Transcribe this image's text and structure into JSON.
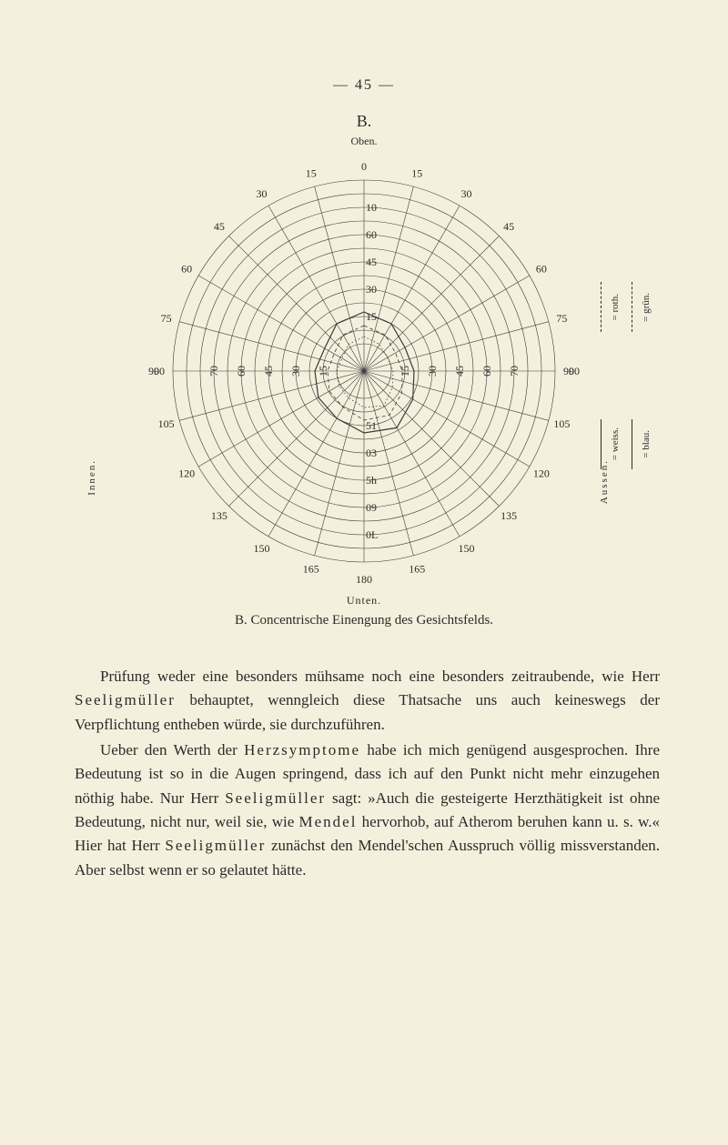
{
  "page_number": "— 45 —",
  "figure_label": "B.",
  "top_label": "Oben.",
  "bottom_label": "Unten.",
  "caption": "B. Concentrische Einengung des Gesichtsfelds.",
  "side_labels": {
    "left": "Innen.",
    "right": "Aussen."
  },
  "legend": {
    "roth": "= roth.",
    "gruen": "= grün.",
    "weiss": "= weiss.",
    "blau": "= blau."
  },
  "chart": {
    "outer_ticks_angles": [
      0,
      15,
      30,
      45,
      60,
      75,
      90,
      105,
      120,
      135,
      150,
      165,
      180,
      165,
      150,
      135,
      120,
      105,
      90,
      75,
      60,
      45,
      30,
      15
    ],
    "radial_labels_left": [
      "15",
      "30",
      "45",
      "60",
      "75",
      "90",
      "105",
      "120",
      "135",
      "150",
      "165"
    ],
    "radial_labels_right": [
      "15",
      "30",
      "45",
      "60",
      "75",
      "90",
      "105",
      "120",
      "135",
      "150",
      "165"
    ],
    "vertical_ticks": [
      "0",
      "10",
      "60",
      "45",
      "30",
      "15",
      "51",
      "03",
      "5h",
      "09",
      "0L",
      "180"
    ],
    "ring_labels_h": [
      "70",
      "60",
      "45",
      "30",
      "15",
      "15",
      "30",
      "45",
      "60",
      "70"
    ],
    "circles_r": [
      30,
      45,
      60,
      75,
      90,
      105,
      120,
      135,
      150,
      165,
      180,
      195,
      210
    ],
    "meridians": 24,
    "line_color": "#3a3a3a",
    "line_width": 0.6,
    "background": "#f5f0dd",
    "inner_curves": [
      {
        "style": "solid",
        "approx_r": [
          65,
          60,
          52,
          55,
          62,
          72,
          68,
          60,
          58,
          54,
          50,
          60
        ],
        "width": 1.2
      },
      {
        "style": "dashed",
        "approx_r": [
          50,
          46,
          40,
          42,
          48,
          56,
          54,
          46,
          44,
          40,
          38,
          46
        ],
        "width": 0.8
      },
      {
        "style": "dotted",
        "approx_r": [
          38,
          34,
          30,
          32,
          36,
          44,
          40,
          34,
          32,
          30,
          28,
          34
        ],
        "width": 0.8
      }
    ]
  },
  "body_text": {
    "p1_part1": "Prüfung weder eine besonders mühsame noch eine besonders zeitraubende, wie Herr ",
    "p1_name1": "Seeligmüller",
    "p1_part2": " behauptet, wenngleich diese Thatsache uns auch keineswegs der Verpflichtung entheben würde, sie durchzuführen.",
    "p2_part1": "Ueber den Werth der ",
    "p2_term1": "Herzsymptome",
    "p2_part2": " habe ich mich genügend ausgesprochen. Ihre Bedeutung ist so in die Augen springend, dass ich auf den Punkt nicht mehr einzugehen nöthig habe. Nur Herr ",
    "p2_name1": "Seeligmüller",
    "p2_part3": " sagt: »Auch die gesteigerte Herzthätigkeit ist ohne Bedeutung, nicht nur, weil sie, wie ",
    "p2_name2": "Mendel",
    "p2_part4": " hervorhob, auf Atherom beruhen kann u. s. w.« Hier hat Herr ",
    "p2_name3": "Seeligmüller",
    "p2_part5": " zunächst den Mendel'schen Ausspruch völlig missverstanden. Aber selbst wenn er so gelautet hätte."
  }
}
